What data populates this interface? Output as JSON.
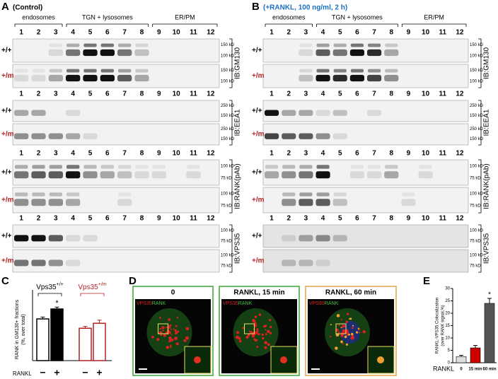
{
  "panels": {
    "A": {
      "letter": "A",
      "title": "(Control)"
    },
    "B": {
      "letter": "B",
      "title": "(+RANKL, 100 ng/ml, 2 h)"
    }
  },
  "fractions": {
    "groups": [
      "endosomes",
      "TGN + lysosomes",
      "ER/PM"
    ],
    "lanes": [
      1,
      2,
      3,
      4,
      5,
      6,
      7,
      8,
      9,
      10,
      11,
      12
    ]
  },
  "genotypes": [
    "+/+",
    "+/m"
  ],
  "blots": [
    {
      "antibody": "IB:GM130",
      "markers": [
        "150 kD",
        "100 kD"
      ]
    },
    {
      "antibody": "IB:EEA1",
      "markers": [
        "250 kD",
        "150 kD"
      ]
    },
    {
      "antibody": "IB:RANK(pAb)",
      "markers": [
        "100 kD",
        "75 kD"
      ]
    },
    {
      "antibody": "IB:VPS35",
      "markers": [
        "100 kD",
        "75 kD"
      ]
    }
  ],
  "micrographs": {
    "letter": "D",
    "stain": [
      "VPS35",
      "RANK"
    ],
    "times": [
      "0",
      "RANKL, 15 min",
      "RANKL, 60 min"
    ]
  },
  "chart_data": [
    {
      "type": "bar",
      "letter": "C",
      "ylabel": [
        "RANK in GM130+ fractions",
        "(%, over total)"
      ],
      "groups": [
        {
          "name": "Vps35",
          "genotype": "+/+",
          "color": "#000000"
        },
        {
          "name": "Vps35",
          "genotype": "+/m",
          "color": "#b22222"
        }
      ],
      "xlabel": "RANKL",
      "categories": [
        "−",
        "+",
        "−",
        "+"
      ],
      "values": [
        67,
        83,
        52,
        60
      ],
      "errors": [
        3,
        3,
        3,
        5
      ],
      "fills": [
        "#ffffff",
        "#000000",
        "#ffffff",
        "#ffffff"
      ],
      "strokes": [
        "#000000",
        "#000000",
        "#b22222",
        "#b22222"
      ],
      "annotation": "*",
      "ylim": [
        0,
        100
      ]
    },
    {
      "type": "bar",
      "letter": "E",
      "ylabel": [
        "RANKL-VPS35 Colocalization",
        "(over RANK signal,%)"
      ],
      "xlabel": "RANKL",
      "categories": [
        "0",
        "15 min",
        "60 min"
      ],
      "values": [
        2.5,
        6,
        24
      ],
      "errors": [
        0.5,
        1,
        2
      ],
      "fills": [
        "#dddddd",
        "#cc0000",
        "#555555"
      ],
      "annotation": "*",
      "ylim": [
        0,
        30
      ],
      "yticks": [
        0,
        5,
        10,
        15,
        20,
        25,
        30
      ]
    }
  ]
}
